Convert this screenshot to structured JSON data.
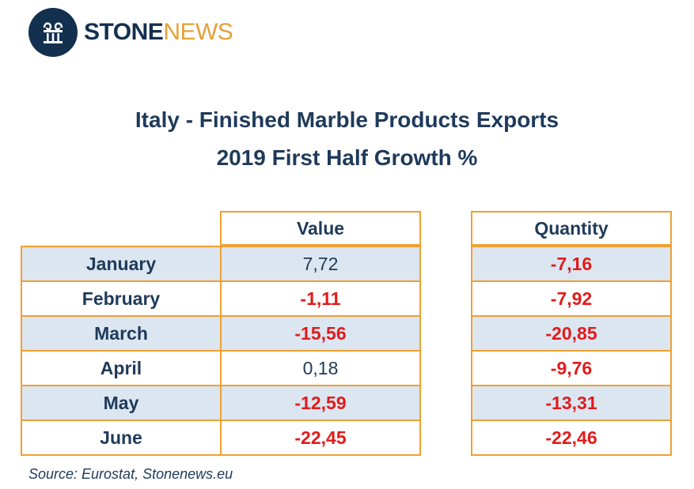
{
  "brand": {
    "logo_part1": "STONE",
    "logo_part2": "NEWS",
    "colors": {
      "navy": "#13304f",
      "orange": "#e3a13a"
    },
    "icon": "column-icon"
  },
  "title_line1": "Italy - Finished Marble Products Exports",
  "title_line2": "2019 First Half Growth %",
  "table": {
    "headers": {
      "value": "Value",
      "quantity": "Quantity"
    },
    "rows": [
      {
        "month": "January",
        "value": "7,72",
        "value_negative": false,
        "quantity": "-7,16"
      },
      {
        "month": "February",
        "value": "-1,11",
        "value_negative": true,
        "quantity": "-7,92"
      },
      {
        "month": "March",
        "value": "-15,56",
        "value_negative": true,
        "quantity": "-20,85"
      },
      {
        "month": "April",
        "value": "0,18",
        "value_negative": false,
        "quantity": "-9,76"
      },
      {
        "month": "May",
        "value": "-12,59",
        "value_negative": true,
        "quantity": "-13,31"
      },
      {
        "month": "June",
        "value": "-22,45",
        "value_negative": true,
        "quantity": "-22,46"
      }
    ],
    "colors": {
      "border": "#f0a030",
      "shade": "#dbe6f1",
      "negative": "#e11b1b"
    }
  },
  "source": "Source: Eurostat, Stonenews.eu"
}
